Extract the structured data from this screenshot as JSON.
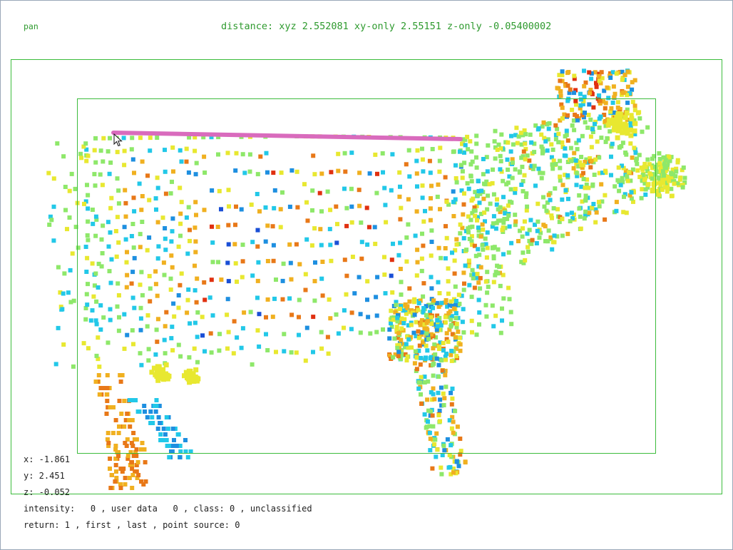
{
  "toolbar": {
    "mode_label": "pan",
    "distance_readout": "distance: xyz 2.552081 xy-only 2.55151 z-only -0.05400002"
  },
  "point_info": {
    "x_line": "x: -1.861",
    "y_line": "y: 2.451",
    "z_line": "z: -0.052",
    "attributes_line": "intensity:   0 , user data   0 , class: 0 , unclassified",
    "return_line": "return: 1 , first , last , point source: 0"
  },
  "colors": {
    "text_green": "#2e9a2e",
    "box_green": "#3cbc3c",
    "measure_line": "#d96bbd",
    "ramp": [
      "#1a4fd6",
      "#1e8fe0",
      "#22c8e8",
      "#8ee86a",
      "#e8e830",
      "#f0b020",
      "#e87818",
      "#e03010"
    ]
  },
  "icons": {
    "cursor": "arrow-pointer-icon"
  }
}
